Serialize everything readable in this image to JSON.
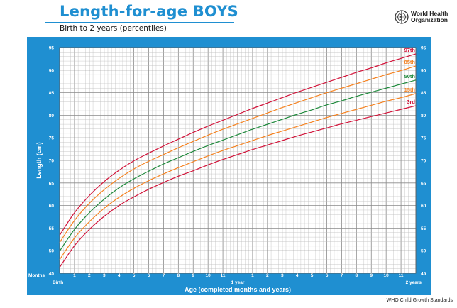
{
  "header": {
    "title": "Length-for-age BOYS",
    "subtitle": "Birth to 2 years (percentiles)",
    "org_line1": "World Health",
    "org_line2": "Organization",
    "org_icon": "who-emblem-icon"
  },
  "footer": {
    "source": "WHO Child Growth Standards"
  },
  "colors": {
    "frame": "#1f8fd1",
    "plot_bg": "#ffffff",
    "grid": "#bdbdbd",
    "p97": "#d2143a",
    "p85": "#f58220",
    "p50": "#1f8a3c",
    "p15": "#f58220",
    "p3": "#d2143a"
  },
  "chart_data": {
    "type": "line",
    "title": "Length-for-age BOYS",
    "subtitle": "Birth to 2 years (percentiles)",
    "xlabel": "Age (completed months and years)",
    "ylabel": "Length (cm)",
    "x_unit_label": "Months",
    "xlim": [
      0,
      24
    ],
    "ylim": [
      45,
      95
    ],
    "grid": true,
    "y_ticks": [
      45,
      50,
      55,
      60,
      65,
      70,
      75,
      80,
      85,
      90,
      95
    ],
    "x_tick_labels": [
      {
        "x": 0,
        "label": "Birth"
      },
      {
        "x": 1,
        "label": "1"
      },
      {
        "x": 2,
        "label": "2"
      },
      {
        "x": 3,
        "label": "3"
      },
      {
        "x": 4,
        "label": "4"
      },
      {
        "x": 5,
        "label": "5"
      },
      {
        "x": 6,
        "label": "6"
      },
      {
        "x": 7,
        "label": "7"
      },
      {
        "x": 8,
        "label": "8"
      },
      {
        "x": 9,
        "label": "9"
      },
      {
        "x": 10,
        "label": "10"
      },
      {
        "x": 11,
        "label": "11"
      },
      {
        "x": 12,
        "label": "1 year"
      },
      {
        "x": 13,
        "label": "1"
      },
      {
        "x": 14,
        "label": "2"
      },
      {
        "x": 15,
        "label": "3"
      },
      {
        "x": 16,
        "label": "4"
      },
      {
        "x": 17,
        "label": "5"
      },
      {
        "x": 18,
        "label": "6"
      },
      {
        "x": 19,
        "label": "7"
      },
      {
        "x": 20,
        "label": "8"
      },
      {
        "x": 21,
        "label": "9"
      },
      {
        "x": 22,
        "label": "10"
      },
      {
        "x": 23,
        "label": "11"
      },
      {
        "x": 24,
        "label": "2 years"
      }
    ],
    "x": [
      0,
      1,
      2,
      3,
      4,
      5,
      6,
      7,
      8,
      9,
      10,
      11,
      12,
      13,
      14,
      15,
      16,
      17,
      18,
      19,
      20,
      21,
      22,
      23,
      24
    ],
    "series": [
      {
        "name": "97th",
        "color_key": "p97",
        "values": [
          53.4,
          58.4,
          62.2,
          65.3,
          67.8,
          69.9,
          71.6,
          73.2,
          74.7,
          76.2,
          77.6,
          78.9,
          80.2,
          81.5,
          82.7,
          83.9,
          85.1,
          86.2,
          87.3,
          88.4,
          89.5,
          90.5,
          91.6,
          92.6,
          93.6
        ]
      },
      {
        "name": "85th",
        "color_key": "p85",
        "values": [
          51.8,
          56.7,
          60.5,
          63.5,
          66.0,
          68.1,
          69.8,
          71.3,
          72.8,
          74.2,
          75.6,
          76.9,
          78.1,
          79.3,
          80.5,
          81.7,
          82.8,
          83.9,
          85.0,
          86.0,
          87.0,
          88.0,
          89.0,
          89.9,
          90.9
        ]
      },
      {
        "name": "50th",
        "color_key": "p50",
        "values": [
          49.9,
          54.7,
          58.4,
          61.4,
          63.9,
          65.9,
          67.6,
          69.2,
          70.6,
          72.0,
          73.3,
          74.5,
          75.7,
          76.9,
          78.0,
          79.1,
          80.2,
          81.2,
          82.3,
          83.2,
          84.2,
          85.1,
          86.0,
          86.9,
          87.8
        ]
      },
      {
        "name": "15th",
        "color_key": "p15",
        "values": [
          48.0,
          52.8,
          56.4,
          59.4,
          61.8,
          63.8,
          65.5,
          67.0,
          68.4,
          69.7,
          71.0,
          72.2,
          73.3,
          74.4,
          75.5,
          76.5,
          77.5,
          78.5,
          79.5,
          80.4,
          81.3,
          82.2,
          83.1,
          83.9,
          84.8
        ]
      },
      {
        "name": "3rd",
        "color_key": "p3",
        "values": [
          46.3,
          51.1,
          54.7,
          57.6,
          60.0,
          61.9,
          63.6,
          65.1,
          66.5,
          67.7,
          69.0,
          70.2,
          71.3,
          72.4,
          73.4,
          74.4,
          75.4,
          76.3,
          77.2,
          78.1,
          78.9,
          79.7,
          80.5,
          81.3,
          82.1
        ]
      }
    ]
  }
}
